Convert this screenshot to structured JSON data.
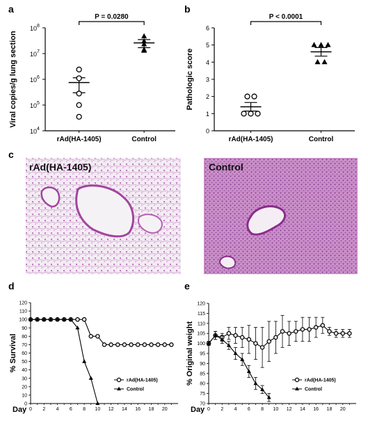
{
  "panel_labels": {
    "a": "a",
    "b": "b",
    "c": "c",
    "d": "d",
    "e": "e"
  },
  "histology": {
    "left_label": "rAd(HA-1405)",
    "right_label": "Control",
    "tissue_color": "#c98fc6",
    "background_color": "#efe6f0"
  },
  "colors": {
    "axis": "#000000",
    "open_marker": "#ffffff",
    "filled_marker": "#000000"
  },
  "chart_data": [
    {
      "id": "a",
      "type": "scatter",
      "ylabel": "Viral copies/g lung section",
      "yscale": "log",
      "ylim": [
        10000,
        100000000
      ],
      "yticks": [
        {
          "value": 10000,
          "base": "10",
          "exp": "4"
        },
        {
          "value": 100000,
          "base": "10",
          "exp": "5"
        },
        {
          "value": 1000000,
          "base": "10",
          "exp": "6"
        },
        {
          "value": 10000000,
          "base": "10",
          "exp": "7"
        },
        {
          "value": 100000000,
          "base": "10",
          "exp": "8"
        }
      ],
      "categories": [
        "rAd(HA-1405)",
        "Control"
      ],
      "series": [
        {
          "marker": "open-circle",
          "values": [
            2400000,
            1100000,
            280000,
            100000,
            35000
          ],
          "mean": 750000,
          "sem_low": 300000,
          "sem_high": 1150000
        },
        {
          "marker": "filled-triangle",
          "values": [
            47000000,
            30000000,
            23000000,
            14000000,
            13000000
          ],
          "mean": 26000000,
          "sem_low": 17000000,
          "sem_high": 35000000
        }
      ],
      "significance": "P = 0.0280"
    },
    {
      "id": "b",
      "type": "scatter",
      "ylabel": "Pathologic score",
      "ylim": [
        0,
        6
      ],
      "yticks": [
        "0",
        "1",
        "2",
        "3",
        "4",
        "5",
        "6"
      ],
      "categories": [
        "rAd(HA-1405)",
        "Control"
      ],
      "series": [
        {
          "marker": "open-circle",
          "values": [
            2,
            2,
            1,
            1,
            1
          ],
          "mean": 1.4,
          "sem_low": 1.15,
          "sem_high": 1.65
        },
        {
          "marker": "filled-triangle",
          "values": [
            5,
            5,
            5,
            4,
            4
          ],
          "mean": 4.6,
          "sem_low": 4.35,
          "sem_high": 4.85
        }
      ],
      "significance": "P < 0.0001"
    },
    {
      "id": "d",
      "type": "line",
      "xlabel": "Day",
      "ylabel": "% Survival",
      "xlim": [
        0,
        22
      ],
      "ylim": [
        0,
        120
      ],
      "xticks": [
        "0",
        "2",
        "4",
        "6",
        "8",
        "10",
        "12",
        "14",
        "16",
        "18",
        "20"
      ],
      "yticks": [
        "0",
        "10",
        "20",
        "30",
        "40",
        "50",
        "60",
        "70",
        "80",
        "90",
        "100",
        "110",
        "120"
      ],
      "legend_position": "lower-right",
      "series": [
        {
          "name": "rAd(HA-1405)",
          "marker": "open-circle",
          "x": [
            0,
            1,
            2,
            3,
            4,
            5,
            6,
            7,
            8,
            9,
            10,
            11,
            12,
            13,
            14,
            15,
            16,
            17,
            18,
            19,
            20,
            21
          ],
          "y": [
            100,
            100,
            100,
            100,
            100,
            100,
            100,
            100,
            100,
            80,
            80,
            70,
            70,
            70,
            70,
            70,
            70,
            70,
            70,
            70,
            70,
            70
          ]
        },
        {
          "name": "Control",
          "marker": "filled-triangle",
          "x": [
            0,
            1,
            2,
            3,
            4,
            5,
            6,
            7,
            8,
            9,
            10
          ],
          "y": [
            100,
            100,
            100,
            100,
            100,
            100,
            100,
            90,
            50,
            30,
            0
          ]
        }
      ]
    },
    {
      "id": "e",
      "type": "line",
      "xlabel": "Day",
      "ylabel": "% Original weight",
      "xlim": [
        0,
        22
      ],
      "ylim": [
        70,
        120
      ],
      "xticks": [
        "0",
        "2",
        "4",
        "6",
        "8",
        "10",
        "12",
        "14",
        "16",
        "18",
        "20"
      ],
      "yticks": [
        "70",
        "75",
        "80",
        "85",
        "90",
        "95",
        "100",
        "105",
        "110",
        "115",
        "120"
      ],
      "legend_position": "lower-right",
      "series": [
        {
          "name": "rAd(HA-1405)",
          "marker": "open-circle",
          "x": [
            0,
            1,
            2,
            3,
            4,
            5,
            6,
            7,
            8,
            9,
            10,
            11,
            12,
            13,
            14,
            15,
            16,
            17,
            18,
            19,
            20,
            21
          ],
          "y": [
            100,
            104,
            103,
            105,
            104,
            103,
            102,
            100,
            98,
            101,
            103,
            106,
            105,
            106,
            107,
            107,
            108,
            109,
            106,
            105,
            105,
            105
          ],
          "err": [
            1,
            2,
            2,
            3,
            4,
            5,
            7,
            8,
            10,
            10,
            8,
            8,
            6,
            5,
            6,
            6,
            5,
            4,
            2,
            2,
            2,
            2
          ]
        },
        {
          "name": "Control",
          "marker": "filled-triangle",
          "x": [
            0,
            1,
            2,
            3,
            4,
            5,
            6,
            7,
            8,
            9
          ],
          "y": [
            100,
            104,
            102,
            99,
            95,
            92,
            86,
            80,
            77,
            73
          ],
          "err": [
            1,
            2,
            2,
            2,
            3,
            3,
            3,
            3,
            2,
            2
          ]
        }
      ]
    }
  ]
}
